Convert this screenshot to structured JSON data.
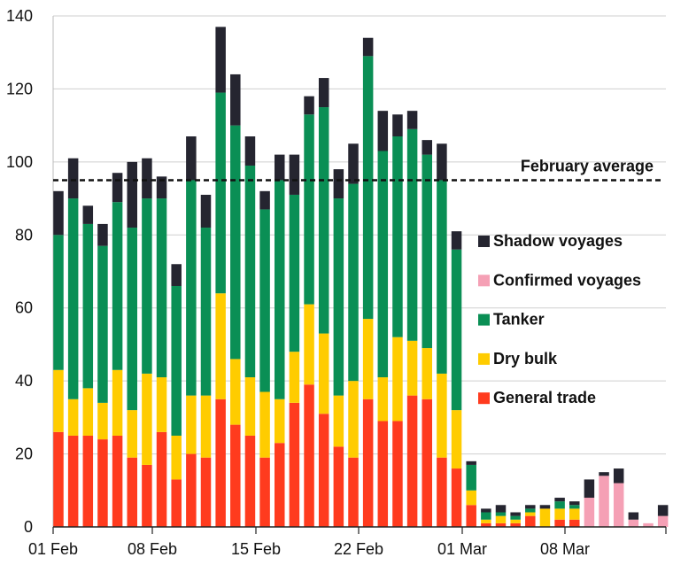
{
  "chart_data": {
    "type": "bar",
    "stacked": true,
    "ylim": [
      0,
      140
    ],
    "y_ticks": [
      0,
      20,
      40,
      60,
      80,
      100,
      120,
      140
    ],
    "x_tick_labels": [
      "01 Feb",
      "08 Feb",
      "15 Feb",
      "22 Feb",
      "01 Mar",
      "08 Mar"
    ],
    "x_tick_days": [
      0,
      7,
      14,
      21,
      28,
      35
    ],
    "grid": "horizontal",
    "reference_line": {
      "label": "February average",
      "value": 95
    },
    "legend_position": "right",
    "colors": {
      "general": "#ff3b1e",
      "drybulk": "#ffcc00",
      "tanker": "#0a8f55",
      "confirmed": "#f5a0b5",
      "shadow": "#252530"
    },
    "series": [
      {
        "name": "General trade",
        "key": "general",
        "values": [
          26,
          25,
          25,
          24,
          25,
          19,
          17,
          26,
          13,
          20,
          19,
          35,
          28,
          25,
          19,
          23,
          34,
          39,
          31,
          22,
          19,
          35,
          29,
          29,
          36,
          35,
          19,
          16,
          6,
          1,
          1,
          1,
          3,
          0,
          2,
          2,
          0,
          0,
          0,
          0,
          0,
          0,
          0
        ]
      },
      {
        "name": "Dry bulk",
        "key": "drybulk",
        "values": [
          17,
          10,
          13,
          10,
          18,
          13,
          25,
          15,
          12,
          16,
          17,
          29,
          18,
          16,
          18,
          12,
          14,
          22,
          22,
          14,
          21,
          22,
          12,
          23,
          15,
          14,
          23,
          16,
          4,
          1,
          2,
          1,
          1,
          5,
          3,
          3,
          0,
          0,
          0,
          0,
          0,
          0,
          0
        ]
      },
      {
        "name": "Tanker",
        "key": "tanker",
        "values": [
          37,
          55,
          45,
          43,
          46,
          50,
          48,
          49,
          41,
          59,
          46,
          55,
          64,
          58,
          50,
          60,
          43,
          52,
          62,
          54,
          54,
          72,
          62,
          55,
          58,
          53,
          53,
          44,
          7,
          2,
          1,
          1,
          1,
          0,
          2,
          1,
          0,
          0,
          0,
          0,
          0,
          0,
          0
        ]
      },
      {
        "name": "Confirmed voyages",
        "key": "confirmed",
        "values": [
          0,
          0,
          0,
          0,
          0,
          0,
          0,
          0,
          0,
          0,
          0,
          0,
          0,
          0,
          0,
          0,
          0,
          0,
          0,
          0,
          0,
          0,
          0,
          0,
          0,
          0,
          0,
          0,
          0,
          0,
          0,
          0,
          0,
          0,
          0,
          0,
          8,
          14,
          12,
          2,
          1,
          3,
          0
        ]
      },
      {
        "name": "Shadow voyages",
        "key": "shadow",
        "values": [
          12,
          11,
          5,
          6,
          8,
          18,
          11,
          6,
          6,
          12,
          9,
          18,
          14,
          8,
          5,
          7,
          11,
          5,
          8,
          8,
          11,
          5,
          11,
          6,
          5,
          4,
          10,
          5,
          1,
          1,
          2,
          1,
          1,
          1,
          1,
          1,
          5,
          1,
          4,
          2,
          0,
          3,
          0
        ]
      }
    ],
    "legend": [
      "Shadow voyages",
      "Confirmed voyages",
      "Tanker",
      "Dry bulk",
      "General trade"
    ]
  }
}
